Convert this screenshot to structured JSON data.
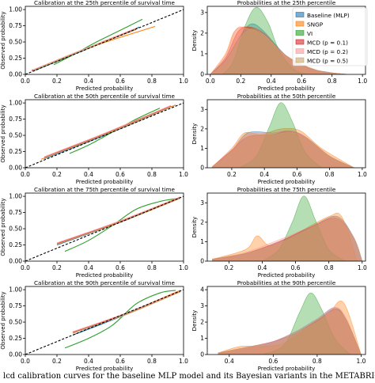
{
  "caption": "lcd calibration curves for the baseline MLP model and its Bayesian variants in the METABRIC",
  "colors": {
    "Baseline (MLP)": "#1f77b4",
    "SNGP": "#ff7f0e",
    "VI": "#2ca02c",
    "MCD (p = 0.1)": "#d62728",
    "MCD (p = 0.2)": "#ff9896",
    "MCD (p = 0.5)": "#c5a86a",
    "ideal": "#000000"
  },
  "legend": {
    "entries": [
      "Baseline (MLP)",
      "SNGP",
      "VI",
      "MCD (p = 0.1)",
      "MCD (p = 0.2)",
      "MCD (p = 0.5)"
    ],
    "placement": "top-right of first density panel"
  },
  "chart_data": [
    {
      "type": "line",
      "title": "Calibration at the 25th percentile of survival time",
      "xlabel": "Predicted probability",
      "ylabel": "Observed probability",
      "xlim": [
        0,
        1
      ],
      "ylim": [
        0,
        1.05
      ],
      "xticks": [
        "0.0",
        "0.2",
        "0.4",
        "0.6",
        "0.8",
        "1.0"
      ],
      "yticks": [
        "0.00",
        "0.25",
        "0.50",
        "0.75",
        "1.00"
      ],
      "reference": {
        "style": "dashed",
        "x": [
          0,
          1
        ],
        "y": [
          0,
          1
        ]
      },
      "series": [
        {
          "name": "Baseline (MLP)",
          "x": [
            0.05,
            0.35,
            0.72
          ],
          "y": [
            0.05,
            0.35,
            0.73
          ]
        },
        {
          "name": "SNGP",
          "x": [
            0.08,
            0.45,
            0.82
          ],
          "y": [
            0.1,
            0.45,
            0.74
          ]
        },
        {
          "name": "VI",
          "x": [
            0.18,
            0.3,
            0.45,
            0.6,
            0.74
          ],
          "y": [
            0.15,
            0.3,
            0.5,
            0.68,
            0.85
          ]
        },
        {
          "name": "MCD (p = 0.1)",
          "x": [
            0.04,
            0.35,
            0.7
          ],
          "y": [
            0.06,
            0.36,
            0.7
          ]
        },
        {
          "name": "MCD (p = 0.2)",
          "x": [
            0.05,
            0.35,
            0.7
          ],
          "y": [
            0.07,
            0.37,
            0.71
          ]
        },
        {
          "name": "MCD (p = 0.5)",
          "x": [
            0.05,
            0.35,
            0.7
          ],
          "y": [
            0.06,
            0.36,
            0.69
          ]
        }
      ]
    },
    {
      "type": "area",
      "title": "Probabilities at the 25th percentile",
      "xlabel": "Predicted probability",
      "ylabel": "Density",
      "xlim": [
        -0.02,
        1.02
      ],
      "ylim": [
        0,
        3.3
      ],
      "xticks": [
        "0.0",
        "0.2",
        "0.4",
        "0.6",
        "0.8",
        "1.0"
      ],
      "yticks": [
        "0",
        "1",
        "2",
        "3"
      ],
      "series": [
        {
          "name": "Baseline (MLP)",
          "x": [
            0.0,
            0.1,
            0.2,
            0.27,
            0.35,
            0.5,
            0.65,
            0.8,
            0.9
          ],
          "y": [
            0.0,
            0.7,
            1.9,
            2.45,
            2.1,
            0.9,
            0.3,
            0.08,
            0.0
          ]
        },
        {
          "name": "SNGP",
          "x": [
            0.0,
            0.1,
            0.16,
            0.25,
            0.35,
            0.5,
            0.7,
            0.9
          ],
          "y": [
            0.0,
            1.0,
            2.1,
            2.3,
            1.9,
            0.9,
            0.2,
            0.0
          ]
        },
        {
          "name": "VI",
          "x": [
            0.08,
            0.15,
            0.22,
            0.3,
            0.38,
            0.45,
            0.55,
            0.65
          ],
          "y": [
            0.0,
            0.6,
            2.2,
            3.25,
            2.5,
            1.2,
            0.25,
            0.0
          ]
        },
        {
          "name": "MCD (p = 0.1)",
          "x": [
            0.0,
            0.1,
            0.18,
            0.25,
            0.35,
            0.5,
            0.7,
            0.9
          ],
          "y": [
            0.0,
            0.8,
            2.05,
            2.3,
            2.0,
            0.9,
            0.2,
            0.0
          ]
        },
        {
          "name": "MCD (p = 0.2)",
          "x": [
            0.0,
            0.1,
            0.17,
            0.25,
            0.35,
            0.5,
            0.7,
            0.9
          ],
          "y": [
            0.0,
            0.9,
            2.2,
            2.2,
            1.9,
            0.9,
            0.2,
            0.0
          ]
        },
        {
          "name": "MCD (p = 0.5)",
          "x": [
            0.0,
            0.1,
            0.2,
            0.28,
            0.36,
            0.5,
            0.7,
            0.9
          ],
          "y": [
            0.0,
            0.6,
            1.8,
            2.2,
            1.9,
            0.9,
            0.2,
            0.0
          ]
        }
      ]
    },
    {
      "type": "line",
      "title": "Calibration at the 50th percentile of survival time",
      "xlabel": "Predicted probability",
      "ylabel": "Observed probability",
      "xlim": [
        0,
        1
      ],
      "ylim": [
        0,
        1.05
      ],
      "xticks": [
        "0.0",
        "0.2",
        "0.4",
        "0.6",
        "0.8",
        "1.0"
      ],
      "yticks": [
        "0.00",
        "0.25",
        "0.50",
        "0.75",
        "1.00"
      ],
      "reference": {
        "style": "dashed",
        "x": [
          0,
          1
        ],
        "y": [
          0,
          1
        ]
      },
      "series": [
        {
          "name": "Baseline (MLP)",
          "x": [
            0.12,
            0.5,
            0.93
          ],
          "y": [
            0.14,
            0.5,
            0.95
          ]
        },
        {
          "name": "SNGP",
          "x": [
            0.1,
            0.5,
            0.95
          ],
          "y": [
            0.13,
            0.52,
            0.97
          ]
        },
        {
          "name": "VI",
          "x": [
            0.28,
            0.4,
            0.55,
            0.7,
            0.85
          ],
          "y": [
            0.22,
            0.35,
            0.55,
            0.75,
            0.92
          ]
        },
        {
          "name": "MCD (p = 0.1)",
          "x": [
            0.12,
            0.5,
            0.92
          ],
          "y": [
            0.16,
            0.52,
            0.95
          ]
        },
        {
          "name": "MCD (p = 0.2)",
          "x": [
            0.12,
            0.5,
            0.92
          ],
          "y": [
            0.17,
            0.53,
            0.96
          ]
        },
        {
          "name": "MCD (p = 0.5)",
          "x": [
            0.12,
            0.5,
            0.92
          ],
          "y": [
            0.15,
            0.51,
            0.94
          ]
        }
      ]
    },
    {
      "type": "area",
      "title": "Probabilities at the 50th percentile",
      "xlabel": "Predicted probability",
      "ylabel": "Density",
      "xlim": [
        0.05,
        1.02
      ],
      "ylim": [
        0,
        3.5
      ],
      "xticks": [
        "0.2",
        "0.4",
        "0.6",
        "0.8",
        "1.0"
      ],
      "yticks": [
        "0",
        "1",
        "2",
        "3"
      ],
      "series": [
        {
          "name": "Baseline (MLP)",
          "x": [
            0.08,
            0.2,
            0.3,
            0.45,
            0.55,
            0.65,
            0.8,
            0.95
          ],
          "y": [
            0.05,
            0.9,
            1.8,
            1.8,
            1.9,
            1.6,
            0.6,
            0.0
          ]
        },
        {
          "name": "SNGP",
          "x": [
            0.08,
            0.2,
            0.28,
            0.38,
            0.5,
            0.62,
            0.75,
            0.95
          ],
          "y": [
            0.05,
            1.0,
            1.8,
            1.7,
            2.0,
            1.9,
            1.0,
            0.0
          ]
        },
        {
          "name": "VI",
          "x": [
            0.25,
            0.35,
            0.43,
            0.5,
            0.57,
            0.65,
            0.75
          ],
          "y": [
            0.0,
            0.6,
            2.1,
            3.35,
            2.4,
            0.8,
            0.0
          ]
        },
        {
          "name": "MCD (p = 0.1)",
          "x": [
            0.08,
            0.2,
            0.3,
            0.45,
            0.55,
            0.65,
            0.8,
            0.95
          ],
          "y": [
            0.05,
            0.9,
            1.6,
            1.7,
            1.9,
            1.6,
            0.6,
            0.0
          ]
        },
        {
          "name": "MCD (p = 0.2)",
          "x": [
            0.08,
            0.2,
            0.3,
            0.45,
            0.55,
            0.65,
            0.8,
            0.95
          ],
          "y": [
            0.05,
            0.9,
            1.7,
            1.8,
            1.9,
            1.6,
            0.6,
            0.0
          ]
        },
        {
          "name": "MCD (p = 0.5)",
          "x": [
            0.08,
            0.2,
            0.3,
            0.45,
            0.55,
            0.65,
            0.8,
            0.95
          ],
          "y": [
            0.05,
            0.8,
            1.6,
            1.7,
            1.8,
            1.6,
            0.6,
            0.0
          ]
        }
      ]
    },
    {
      "type": "line",
      "title": "Calibration at the 75th percentile of survival time",
      "xlabel": "Predicted probability",
      "ylabel": "Observed probability",
      "xlim": [
        0,
        1
      ],
      "ylim": [
        0,
        1.05
      ],
      "xticks": [
        "0.0",
        "0.2",
        "0.4",
        "0.6",
        "0.8",
        "1.0"
      ],
      "yticks": [
        "0.00",
        "0.25",
        "0.50",
        "0.75",
        "1.00"
      ],
      "reference": {
        "style": "dashed",
        "x": [
          0,
          1
        ],
        "y": [
          0,
          1
        ]
      },
      "series": [
        {
          "name": "Baseline (MLP)",
          "x": [
            0.2,
            0.6,
            0.98
          ],
          "y": [
            0.25,
            0.6,
            0.98
          ]
        },
        {
          "name": "SNGP",
          "x": [
            0.2,
            0.6,
            0.98
          ],
          "y": [
            0.26,
            0.62,
            0.99
          ]
        },
        {
          "name": "VI",
          "x": [
            0.25,
            0.4,
            0.55,
            0.7,
            0.85,
            0.97
          ],
          "y": [
            0.15,
            0.32,
            0.55,
            0.8,
            0.92,
            0.97
          ]
        },
        {
          "name": "MCD (p = 0.1)",
          "x": [
            0.2,
            0.6,
            0.98
          ],
          "y": [
            0.27,
            0.61,
            0.98
          ]
        },
        {
          "name": "MCD (p = 0.2)",
          "x": [
            0.2,
            0.6,
            0.98
          ],
          "y": [
            0.28,
            0.62,
            0.99
          ]
        },
        {
          "name": "MCD (p = 0.5)",
          "x": [
            0.2,
            0.6,
            0.98
          ],
          "y": [
            0.26,
            0.6,
            0.97
          ]
        }
      ]
    },
    {
      "type": "area",
      "title": "Probabilities at the 75th percentile",
      "xlabel": "Predicted probability",
      "ylabel": "Density",
      "xlim": [
        0.07,
        1.02
      ],
      "ylim": [
        0,
        3.5
      ],
      "xticks": [
        "0.2",
        "0.4",
        "0.6",
        "0.8",
        "1.0"
      ],
      "yticks": [
        "0",
        "1",
        "2",
        "3"
      ],
      "series": [
        {
          "name": "Baseline (MLP)",
          "x": [
            0.1,
            0.3,
            0.5,
            0.7,
            0.85,
            0.95,
            1.0
          ],
          "y": [
            0.1,
            0.4,
            1.0,
            1.8,
            2.3,
            1.2,
            0.0
          ]
        },
        {
          "name": "SNGP",
          "x": [
            0.1,
            0.3,
            0.37,
            0.45,
            0.6,
            0.8,
            0.88,
            0.97
          ],
          "y": [
            0.1,
            0.6,
            1.3,
            0.8,
            1.4,
            2.3,
            2.25,
            0.0
          ]
        },
        {
          "name": "VI",
          "x": [
            0.4,
            0.5,
            0.58,
            0.65,
            0.72,
            0.8,
            0.9
          ],
          "y": [
            0.0,
            0.6,
            2.0,
            3.35,
            2.1,
            0.6,
            0.0
          ]
        },
        {
          "name": "MCD (p = 0.1)",
          "x": [
            0.1,
            0.3,
            0.5,
            0.7,
            0.85,
            0.95,
            1.0
          ],
          "y": [
            0.1,
            0.4,
            1.0,
            1.8,
            2.2,
            1.2,
            0.0
          ]
        },
        {
          "name": "MCD (p = 0.2)",
          "x": [
            0.1,
            0.3,
            0.5,
            0.7,
            0.85,
            0.95,
            1.0
          ],
          "y": [
            0.1,
            0.45,
            1.1,
            1.8,
            2.25,
            1.2,
            0.0
          ]
        },
        {
          "name": "MCD (p = 0.5)",
          "x": [
            0.1,
            0.3,
            0.5,
            0.7,
            0.85,
            0.95,
            1.0
          ],
          "y": [
            0.1,
            0.4,
            0.9,
            1.7,
            2.2,
            1.2,
            0.0
          ]
        }
      ]
    },
    {
      "type": "line",
      "title": "Calibration at the 90th percentile of survival time",
      "xlabel": "Predicted probability",
      "ylabel": "Observed probability",
      "xlim": [
        0,
        1
      ],
      "ylim": [
        0,
        1.05
      ],
      "xticks": [
        "0.0",
        "0.2",
        "0.4",
        "0.6",
        "0.8",
        "1.0"
      ],
      "yticks": [
        "0.00",
        "0.25",
        "0.50",
        "0.75",
        "1.00"
      ],
      "reference": {
        "style": "dashed",
        "x": [
          0,
          1
        ],
        "y": [
          0,
          1
        ]
      },
      "series": [
        {
          "name": "Baseline (MLP)",
          "x": [
            0.3,
            0.65,
            0.98
          ],
          "y": [
            0.3,
            0.63,
            0.98
          ]
        },
        {
          "name": "SNGP",
          "x": [
            0.3,
            0.65,
            0.98
          ],
          "y": [
            0.33,
            0.65,
            0.99
          ]
        },
        {
          "name": "VI",
          "x": [
            0.25,
            0.4,
            0.55,
            0.7,
            0.85,
            0.95
          ],
          "y": [
            0.1,
            0.25,
            0.45,
            0.78,
            0.95,
            0.99
          ]
        },
        {
          "name": "MCD (p = 0.1)",
          "x": [
            0.3,
            0.65,
            0.98
          ],
          "y": [
            0.34,
            0.64,
            0.97
          ]
        },
        {
          "name": "MCD (p = 0.2)",
          "x": [
            0.3,
            0.65,
            0.98
          ],
          "y": [
            0.35,
            0.65,
            0.98
          ]
        },
        {
          "name": "MCD (p = 0.5)",
          "x": [
            0.3,
            0.65,
            0.98
          ],
          "y": [
            0.33,
            0.63,
            0.97
          ]
        }
      ]
    },
    {
      "type": "area",
      "title": "Probabilities at the 90th percentile",
      "xlabel": "Predicted probability",
      "ylabel": "Density",
      "xlim": [
        0.3,
        1.02
      ],
      "ylim": [
        0,
        4.2
      ],
      "xticks": [
        "0.4",
        "0.6",
        "0.8",
        "1.0"
      ],
      "yticks": [
        "0",
        "1",
        "2",
        "3",
        "4"
      ],
      "series": [
        {
          "name": "Baseline (MLP)",
          "x": [
            0.35,
            0.5,
            0.6,
            0.7,
            0.8,
            0.88,
            0.93,
            1.0
          ],
          "y": [
            0.1,
            0.5,
            0.8,
            1.4,
            2.2,
            2.9,
            2.2,
            0.0
          ]
        },
        {
          "name": "SNGP",
          "x": [
            0.35,
            0.45,
            0.55,
            0.65,
            0.75,
            0.85,
            0.92,
            1.0
          ],
          "y": [
            0.1,
            0.5,
            0.5,
            0.7,
            1.6,
            2.5,
            3.2,
            0.0
          ]
        },
        {
          "name": "VI",
          "x": [
            0.55,
            0.65,
            0.72,
            0.77,
            0.82,
            0.88,
            0.95
          ],
          "y": [
            0.0,
            0.6,
            2.6,
            3.8,
            2.8,
            1.0,
            0.0
          ]
        },
        {
          "name": "MCD (p = 0.1)",
          "x": [
            0.35,
            0.5,
            0.6,
            0.7,
            0.8,
            0.88,
            0.93,
            1.0
          ],
          "y": [
            0.1,
            0.5,
            0.8,
            1.3,
            2.1,
            2.8,
            2.2,
            0.0
          ]
        },
        {
          "name": "MCD (p = 0.2)",
          "x": [
            0.35,
            0.5,
            0.6,
            0.7,
            0.8,
            0.88,
            0.93,
            1.0
          ],
          "y": [
            0.1,
            0.5,
            0.8,
            1.4,
            2.2,
            2.9,
            2.3,
            0.0
          ]
        },
        {
          "name": "MCD (p = 0.5)",
          "x": [
            0.35,
            0.5,
            0.6,
            0.7,
            0.8,
            0.88,
            0.93,
            1.0
          ],
          "y": [
            0.1,
            0.5,
            0.7,
            1.3,
            2.0,
            2.7,
            2.2,
            0.0
          ]
        }
      ]
    }
  ]
}
